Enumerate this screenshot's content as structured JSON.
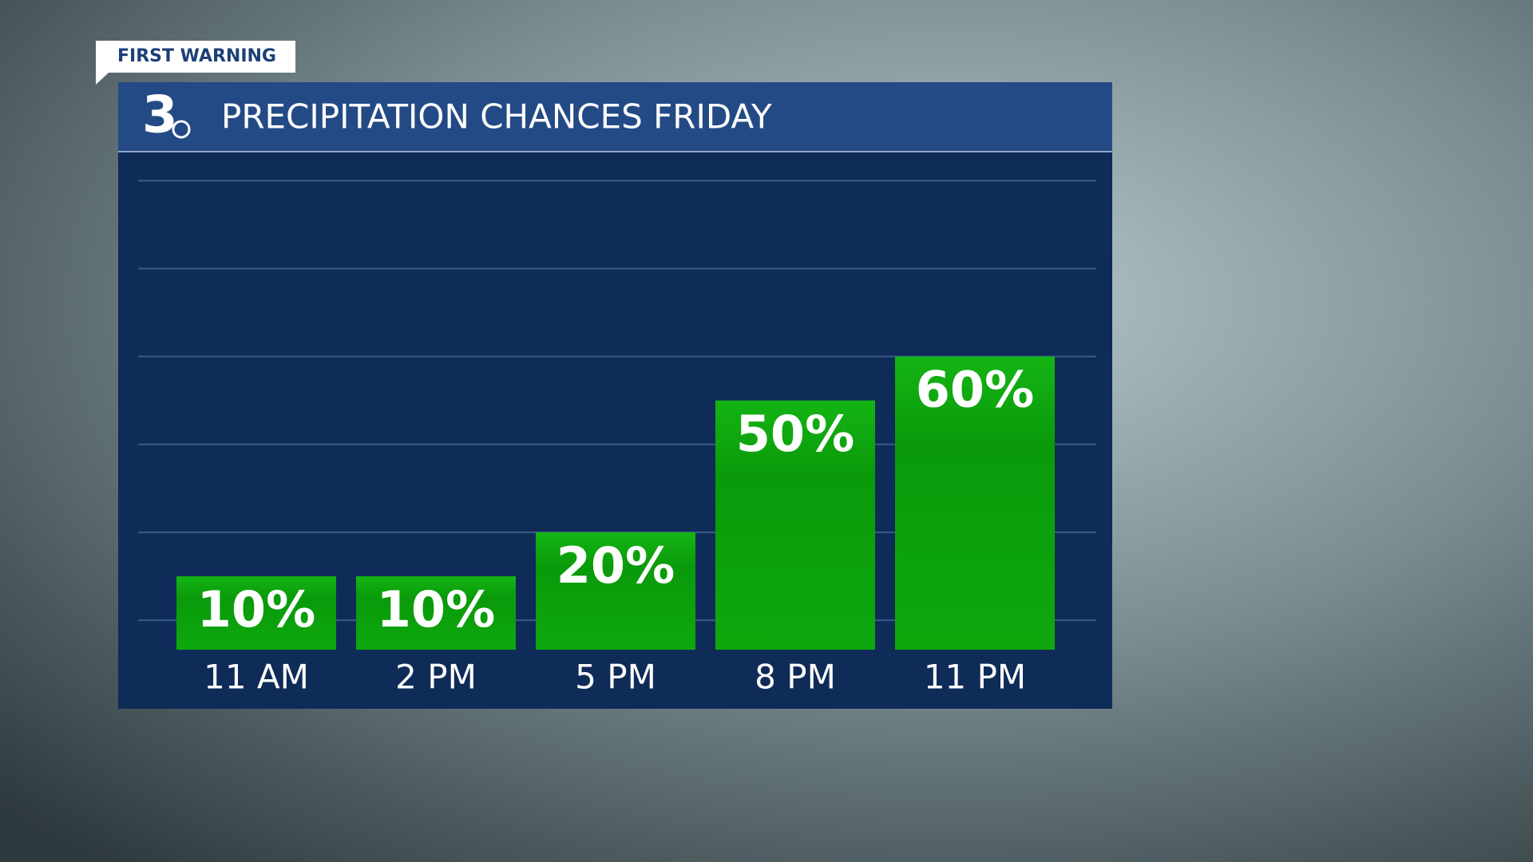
{
  "badge": "FIRST WARNING",
  "logo": "3",
  "chart_data": {
    "type": "bar",
    "title": "PRECIPITATION CHANCES FRIDAY",
    "categories": [
      "11 AM",
      "2 PM",
      "5 PM",
      "8 PM",
      "11 PM"
    ],
    "values": [
      10,
      10,
      20,
      50,
      60
    ],
    "value_labels": [
      "10%",
      "10%",
      "20%",
      "50%",
      "60%"
    ],
    "color": "#0fa30f",
    "ylim": [
      -6.7,
      106.6
    ],
    "yticks": [
      0,
      20,
      40,
      60,
      80,
      100
    ],
    "grid": true
  }
}
